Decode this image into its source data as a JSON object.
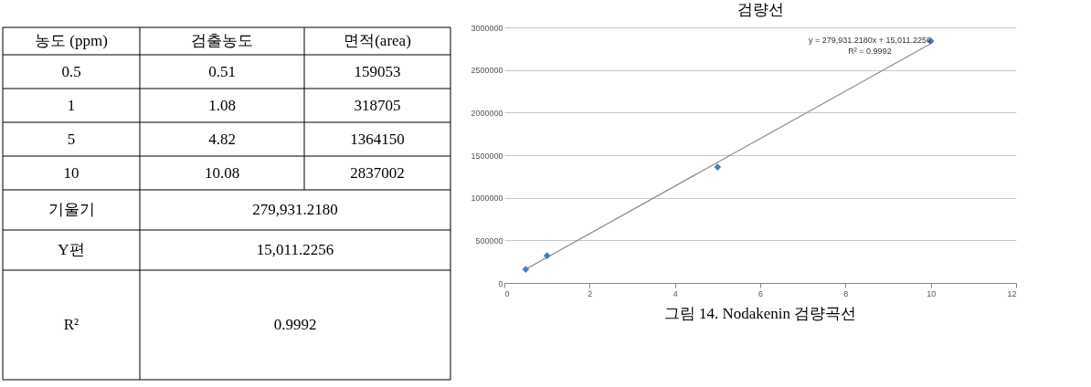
{
  "chart_data": [
    {
      "type": "other",
      "annotations": [
        "농도 (ppm)",
        "검출농도",
        "면적(area)",
        "0.5",
        "0.51",
        "159053",
        "1",
        "1.08",
        "318705",
        "5",
        "4.82",
        "1364150",
        "10",
        "10.08",
        "2837002",
        "기울기",
        "279,931.2180",
        "Y편",
        "15,011.2256",
        "R²",
        "0.9992"
      ]
    },
    {
      "type": "scatter",
      "title": "검량선",
      "x": [
        0.5,
        1,
        5,
        10
      ],
      "series": [
        {
          "type": "scatter",
          "color": "#4a7ebb",
          "values": [
            160000,
            320000,
            1360000,
            2840000
          ]
        },
        {
          "type": "line",
          "color": "#868686",
          "marker": "none",
          "x": [
            0.5,
            10
          ],
          "values": [
            160000,
            2810000
          ]
        }
      ],
      "xlim": [
        0,
        12
      ],
      "xticks": [
        0,
        2,
        4,
        6,
        8,
        10,
        12
      ],
      "ylim": [
        0,
        3000000
      ],
      "yticks": [
        0,
        500000,
        1000000,
        1500000,
        2000000,
        2500000,
        3000000
      ],
      "grid": "y",
      "marker": "diamond",
      "annotations": [
        "y = 279,931.2180x + 15,011.2256",
        "R² = 0.9992",
        "그림 14. Nodakenin 검량곡선"
      ]
    }
  ]
}
